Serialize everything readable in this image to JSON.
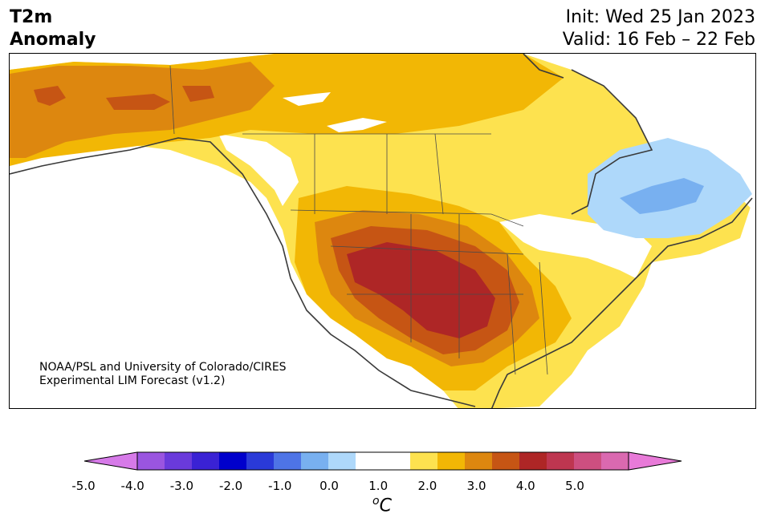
{
  "title": {
    "left_line1": "T2m",
    "left_line2": "Anomaly",
    "right_line1": "Init: Wed 25 Jan 2023",
    "right_line2": "Valid: 16 Feb – 22 Feb"
  },
  "credit": {
    "line1": "NOAA/PSL and University of Colorado/CIRES",
    "line2": "Experimental LIM Forecast (v1.2)"
  },
  "colorbar": {
    "unit_sup": "o",
    "unit_main": "C",
    "ticks": [
      "-5.0",
      "-4.0",
      "-3.0",
      "-2.0",
      "-1.0",
      "0.0",
      "1.0",
      "2.0",
      "3.0",
      "4.0",
      "5.0"
    ],
    "colors": [
      "#d67ae8",
      "#9a55e0",
      "#6a3adb",
      "#3a22d4",
      "#0000cc",
      "#2a3ad8",
      "#4e74e6",
      "#78b0f0",
      "#aed8fa",
      "#ffffff",
      "#ffffff",
      "#fde24f",
      "#f2b705",
      "#dd870f",
      "#c65514",
      "#ae2626",
      "#be3650",
      "#cd4f80",
      "#da69b0",
      "#e87ad8"
    ]
  },
  "legend_colors": {
    "warm_1": "#fde24f",
    "warm_2": "#f2b705",
    "warm_3": "#dd870f",
    "warm_4": "#c65514",
    "warm_5": "#ae2626",
    "cool_1": "#aed8fa",
    "cool_2": "#78b0f0"
  }
}
